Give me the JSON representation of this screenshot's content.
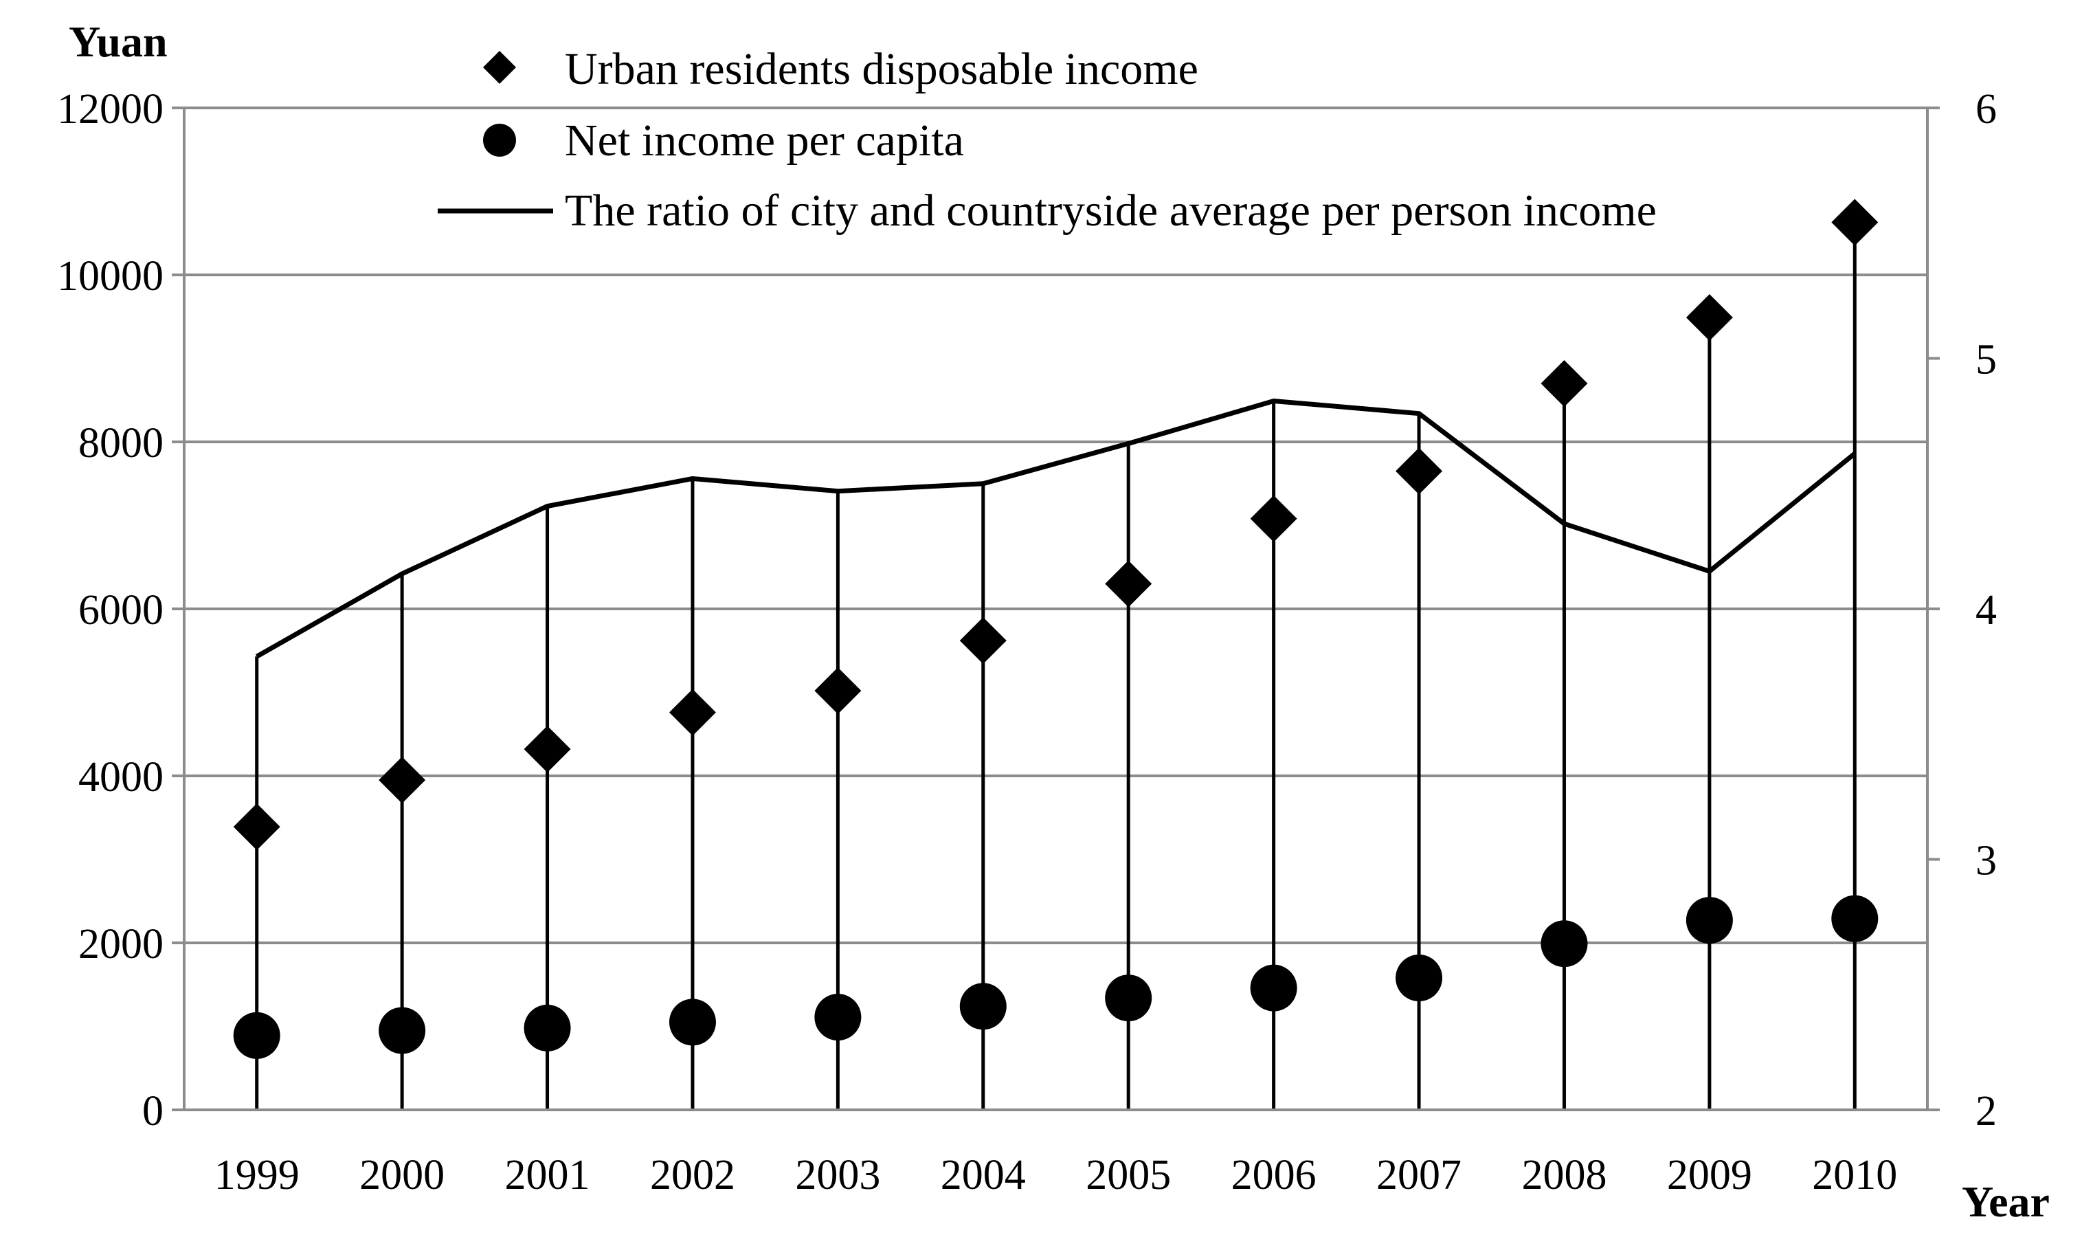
{
  "chart_data": {
    "type": "line",
    "title": "",
    "xlabel": "Year",
    "ylabel": "Yuan",
    "y2label": "",
    "categories": [
      "1999",
      "2000",
      "2001",
      "2002",
      "2003",
      "2004",
      "2005",
      "2006",
      "2007",
      "2008",
      "2009",
      "2010"
    ],
    "ylim": [
      0,
      12000
    ],
    "y2lim": [
      2,
      6
    ],
    "yticks": [
      "0",
      "2000",
      "4000",
      "6000",
      "8000",
      "10000",
      "12000"
    ],
    "y2ticks": [
      "2",
      "3",
      "4",
      "5",
      "6"
    ],
    "grid": true,
    "legend_position": "top",
    "series": [
      {
        "name": "Urban residents disposable income",
        "marker": "diamond",
        "axis": "left",
        "values": [
          3390,
          3950,
          4320,
          4760,
          5020,
          5620,
          6300,
          7080,
          7650,
          8700,
          9490,
          10630
        ]
      },
      {
        "name": "Net income per capita",
        "marker": "circle",
        "axis": "left",
        "values": [
          890,
          950,
          980,
          1050,
          1110,
          1240,
          1340,
          1460,
          1580,
          1990,
          2270,
          2290
        ]
      },
      {
        "name": "The ratio of city and countryside average per person income",
        "marker": "line",
        "axis": "right",
        "values": [
          3.81,
          4.14,
          4.41,
          4.52,
          4.47,
          4.5,
          4.66,
          4.83,
          4.78,
          4.34,
          4.15,
          4.62
        ]
      }
    ]
  }
}
